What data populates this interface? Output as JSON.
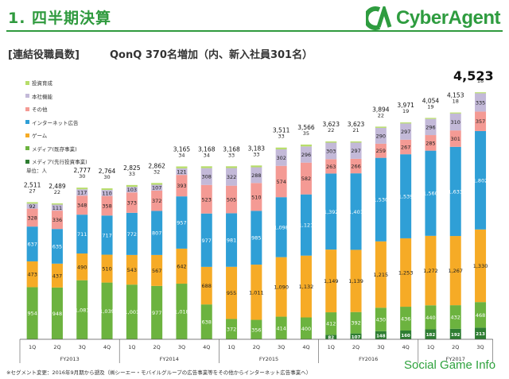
{
  "header": {
    "title": "1. 四半期決算",
    "logo_text": "CyberAgent",
    "section_label": "[連結役職員数]",
    "headline": "QonQ 370名増加（内、新入社員301名）"
  },
  "footnote": "※セグメント変更：2016年9月期から遡及（㈱シーエー・モバイルグループの広告事業等をその他からインターネット広告事業へ）",
  "watermark": "Social Game Info",
  "colors": {
    "投資育成": "#b7dd6a",
    "本社機能": "#c3b9d8",
    "その他": "#f49a94",
    "インターネット広告": "#2f9fd6",
    "ゲーム": "#f6ab26",
    "メディア(既存事業)": "#6cb33f",
    "メディア(先行投資事業)": "#2e7d32"
  },
  "chart_data": {
    "type": "bar",
    "stacked": true,
    "unit_label": "単位：人",
    "categories": [
      "1Q",
      "2Q",
      "3Q",
      "4Q",
      "1Q",
      "2Q",
      "3Q",
      "4Q",
      "1Q",
      "2Q",
      "3Q",
      "4Q",
      "1Q",
      "2Q",
      "3Q",
      "4Q",
      "1Q",
      "2Q",
      "3Q"
    ],
    "fiscal_years": [
      {
        "label": "FY2013",
        "quarters": 4
      },
      {
        "label": "FY2014",
        "quarters": 4
      },
      {
        "label": "FY2015",
        "quarters": 4
      },
      {
        "label": "FY2016",
        "quarters": 4
      },
      {
        "label": "FY2017",
        "quarters": 3
      }
    ],
    "legend": [
      "投資育成",
      "本社機能",
      "その他",
      "インターネット広告",
      "ゲーム",
      "メディア(既存事業)",
      "メディア(先行投資事業)"
    ],
    "series": [
      {
        "name": "メディア(先行投資事業)",
        "values": [
          0,
          0,
          0,
          0,
          0,
          0,
          0,
          0,
          0,
          0,
          0,
          0,
          82,
          107,
          148,
          160,
          182,
          192,
          213
        ]
      },
      {
        "name": "メディア(既存事業)",
        "values": [
          954,
          948,
          1081,
          1039,
          1001,
          977,
          1018,
          638,
          372,
          356,
          414,
          400,
          412,
          392,
          430,
          436,
          440,
          432,
          468
        ]
      },
      {
        "name": "ゲーム",
        "values": [
          473,
          437,
          490,
          510,
          543,
          567,
          642,
          688,
          955,
          1011,
          1090,
          1132,
          1149,
          1139,
          1215,
          1253,
          1272,
          1267,
          1330
        ]
      },
      {
        "name": "インターネット広告",
        "values": [
          637,
          635,
          711,
          717,
          772,
          807,
          957,
          977,
          981,
          985,
          1098,
          1121,
          1392,
          1401,
          1530,
          1539,
          1560,
          1633,
          1802
        ]
      },
      {
        "name": "その他",
        "values": [
          328,
          336,
          348,
          358,
          373,
          372,
          393,
          523,
          505,
          510,
          574,
          582,
          263,
          266,
          259,
          267,
          285,
          301,
          357
        ]
      },
      {
        "name": "本社機能",
        "values": [
          92,
          111,
          117,
          110,
          103,
          107,
          121,
          308,
          322,
          288,
          302,
          296,
          303,
          297,
          290,
          297,
          296,
          310,
          335
        ]
      },
      {
        "name": "投資育成",
        "values": [
          27,
          22,
          30,
          30,
          33,
          32,
          34,
          34,
          33,
          33,
          33,
          35,
          22,
          21,
          22,
          19,
          19,
          18,
          18
        ]
      }
    ],
    "totals": [
      2511,
      2489,
      2777,
      2764,
      2825,
      2862,
      3165,
      3168,
      3168,
      3183,
      3511,
      3566,
      3623,
      3623,
      3894,
      3971,
      4054,
      4153,
      4523
    ],
    "totals_display": [
      "2,511",
      "2,489",
      "2,777",
      "2,764",
      "2,825",
      "2,862",
      "3,165",
      "3,168",
      "3,168",
      "3,183",
      "3,511",
      "3,566",
      "3,623",
      "3,623",
      "3,894",
      "3,971",
      "4,054",
      "4,153",
      "4,523"
    ],
    "ylim": [
      0,
      4700
    ]
  }
}
